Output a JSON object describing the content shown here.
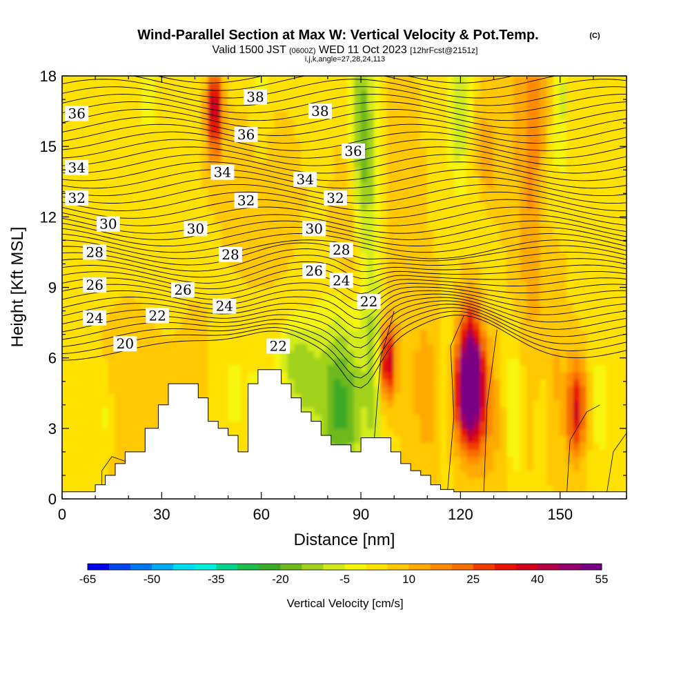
{
  "chart_data": {
    "type": "heatmap",
    "title": "Wind-Parallel Section at Max W: Vertical Velocity & Pot.Temp.",
    "title_mark": "(C)",
    "subtitle_pre": "Valid 1500 JST",
    "subtitle_zulu": "(0600Z)",
    "subtitle_mid": "WED 11 Oct 2023",
    "subtitle_fcst": "[12hrFcst@2151z]",
    "subtitle2": "i,j,k,angle=27,28,24,113",
    "xlabel": "Distance [nm]",
    "ylabel": "Height [Kft MSL]",
    "xlim": [
      0,
      170
    ],
    "ylim": [
      0,
      18
    ],
    "x_ticks": [
      "0",
      "30",
      "60",
      "90",
      "120",
      "150"
    ],
    "y_ticks": [
      "0",
      "3",
      "6",
      "9",
      "12",
      "15",
      "18"
    ],
    "colorbar": {
      "label": "Vertical Velocity [cm/s]",
      "levels": [
        -65,
        -60,
        -55,
        -50,
        -45,
        -40,
        -35,
        -30,
        -25,
        -20,
        -15,
        -10,
        -5,
        0,
        5,
        10,
        15,
        20,
        25,
        30,
        35,
        40,
        45,
        50,
        55
      ],
      "tick_labels": [
        "-65",
        "-50",
        "-35",
        "-20",
        "-5",
        "10",
        "25",
        "40",
        "55"
      ],
      "colors": [
        "#0000ee",
        "#0044ee",
        "#0077ee",
        "#00aaee",
        "#00ddee",
        "#00eedd",
        "#00d28c",
        "#1ebe4b",
        "#3caa28",
        "#6eb91e",
        "#a0d21e",
        "#d2eb1e",
        "#f5f50a",
        "#ffe100",
        "#ffc800",
        "#ffaa00",
        "#ff8c00",
        "#f56e00",
        "#f03c00",
        "#e61400",
        "#d2001e",
        "#b40046",
        "#96006e",
        "#780082"
      ]
    },
    "theta_contour_labels": [
      {
        "text": "36",
        "x": 4.4,
        "y": 16.4
      },
      {
        "text": "34",
        "x": 4.4,
        "y": 14.1
      },
      {
        "text": "32",
        "x": 4.4,
        "y": 12.8
      },
      {
        "text": "30",
        "x": 13.9,
        "y": 11.7
      },
      {
        "text": "28",
        "x": 9.8,
        "y": 10.5
      },
      {
        "text": "26",
        "x": 9.8,
        "y": 9.1
      },
      {
        "text": "24",
        "x": 9.8,
        "y": 7.7
      },
      {
        "text": "20",
        "x": 19.0,
        "y": 6.6
      },
      {
        "text": "22",
        "x": 28.7,
        "y": 7.8
      },
      {
        "text": "26",
        "x": 36.4,
        "y": 8.9
      },
      {
        "text": "24",
        "x": 48.9,
        "y": 8.2
      },
      {
        "text": "28",
        "x": 50.7,
        "y": 10.4
      },
      {
        "text": "30",
        "x": 40.2,
        "y": 11.5
      },
      {
        "text": "32",
        "x": 55.4,
        "y": 12.7
      },
      {
        "text": "34",
        "x": 48.3,
        "y": 13.9
      },
      {
        "text": "36",
        "x": 55.4,
        "y": 15.5
      },
      {
        "text": "38",
        "x": 58.2,
        "y": 17.1
      },
      {
        "text": "22",
        "x": 65.1,
        "y": 6.5
      },
      {
        "text": "26",
        "x": 75.9,
        "y": 9.7
      },
      {
        "text": "30",
        "x": 75.9,
        "y": 11.5
      },
      {
        "text": "34",
        "x": 73.2,
        "y": 13.6
      },
      {
        "text": "38",
        "x": 77.7,
        "y": 16.5
      },
      {
        "text": "28",
        "x": 84.1,
        "y": 10.6
      },
      {
        "text": "24",
        "x": 84.1,
        "y": 9.3
      },
      {
        "text": "32",
        "x": 82.3,
        "y": 12.8
      },
      {
        "text": "36",
        "x": 87.7,
        "y": 14.8
      },
      {
        "text": "22",
        "x": 92.4,
        "y": 8.4
      }
    ],
    "note_placeholder": ""
  }
}
